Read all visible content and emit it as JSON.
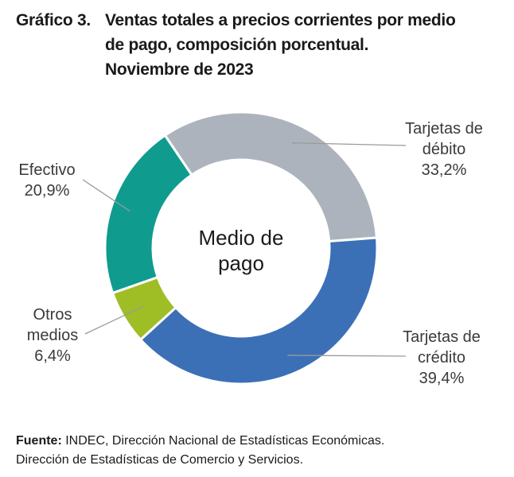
{
  "title": {
    "label": "Gráfico 3.",
    "lines": [
      "Ventas totales a precios corrientes por medio",
      "de pago, composición porcentual.",
      "Noviembre de 2023"
    ]
  },
  "chart_data": {
    "type": "pie",
    "variant": "donut",
    "center_label": [
      "Medio de",
      "pago"
    ],
    "slices": [
      {
        "name": "Tarjetas de débito",
        "label_lines": [
          "Tarjetas de",
          "débito"
        ],
        "value_label": "33,2%",
        "value": 33.2,
        "color": "#adb3bc"
      },
      {
        "name": "Tarjetas de crédito",
        "label_lines": [
          "Tarjetas de",
          "crédito"
        ],
        "value_label": "39,4%",
        "value": 39.4,
        "color": "#3b70b7"
      },
      {
        "name": "Otros medios",
        "label_lines": [
          "Otros",
          "medios"
        ],
        "value_label": "6,4%",
        "value": 6.4,
        "color": "#9fbe26"
      },
      {
        "name": "Efectivo",
        "label_lines": [
          "Efectivo"
        ],
        "value_label": "20,9%",
        "value": 20.9,
        "color": "#109b8f"
      }
    ]
  },
  "footer": {
    "label": "Fuente:",
    "line1": "INDEC, Dirección Nacional de Estadísticas Económicas.",
    "line2": "Dirección de Estadísticas de Comercio y Servicios."
  }
}
